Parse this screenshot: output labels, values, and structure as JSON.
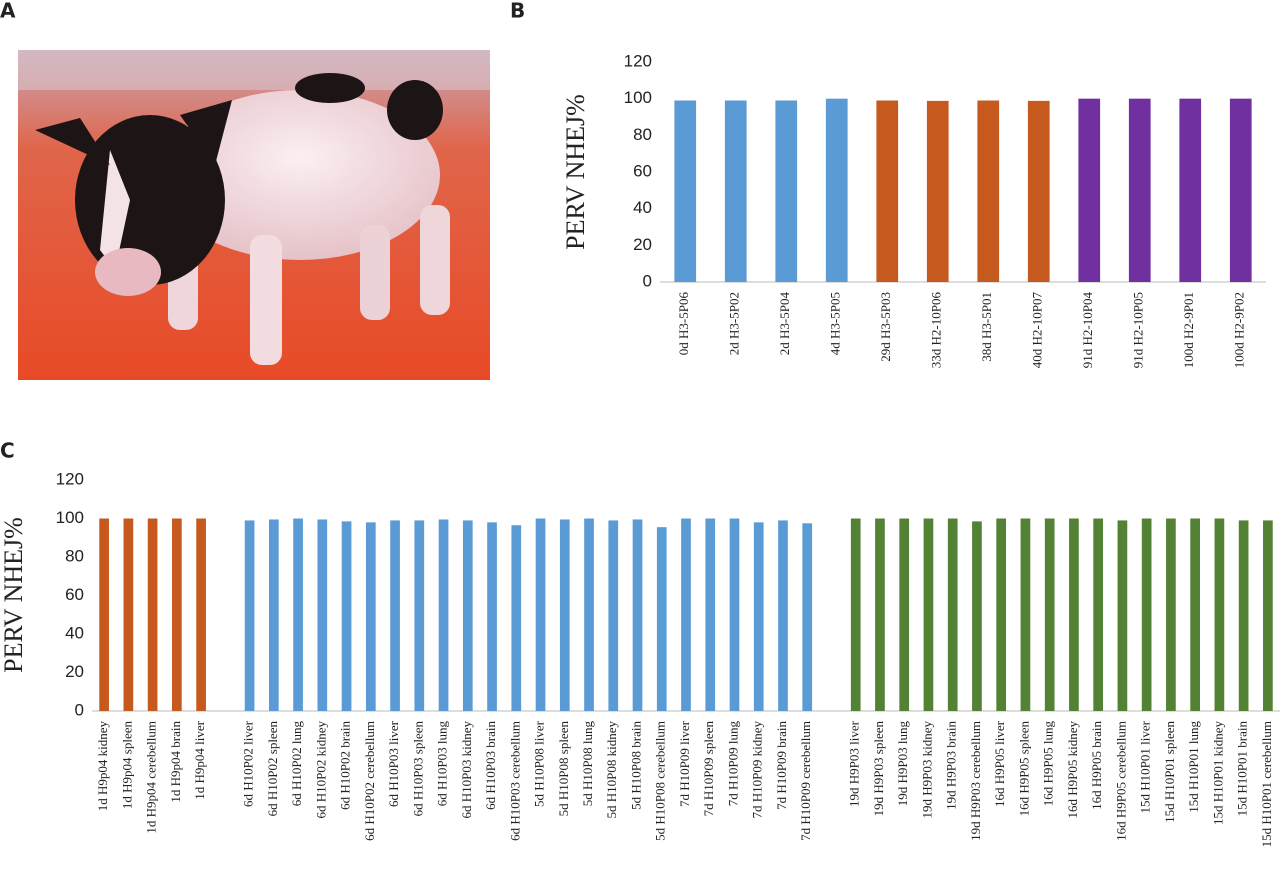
{
  "panel_a": "A",
  "chart_data": [
    {
      "type": "bar",
      "panel": "B",
      "y_label": "PERV NHEJ%",
      "categories": [
        "0d H3-5P06",
        "2d H3-5P02",
        "2d H3-5P04",
        "4d H3-5P05",
        "29d H3-5P03",
        "33d H2-10P06",
        "38d H3-5P01",
        "40d H2-10P07",
        "91d H2-10P04",
        "91d H2-10P05",
        "100d H2-9P01",
        "100d H2-9P02"
      ],
      "values": [
        99,
        99,
        99,
        100,
        99,
        98.8,
        99,
        98.8,
        100,
        100,
        100,
        100
      ],
      "colors": [
        "#5b9bd5",
        "#5b9bd5",
        "#5b9bd5",
        "#5b9bd5",
        "#c65a1e",
        "#c65a1e",
        "#c65a1e",
        "#c65a1e",
        "#7030a0",
        "#7030a0",
        "#7030a0",
        "#7030a0"
      ],
      "ylim": [
        0,
        120
      ],
      "yticks": [
        0,
        20,
        40,
        60,
        80,
        100,
        120
      ],
      "grid": false
    },
    {
      "type": "bar",
      "panel": "C",
      "y_label": "PERV NHEJ%",
      "categories": [
        "1d H9p04 kidney",
        "1d H9p04 spleen",
        "1d H9p04 cerebellum",
        "1d H9p04 brain",
        "1d H9p04 liver",
        null,
        "6d H10P02 liver",
        "6d H10P02 spleen",
        "6d H10P02 lung",
        "6d H10P02 kidney",
        "6d H10P02 brain",
        "6d H10P02 cerebellum",
        "6d H10P03 liver",
        "6d H10P03 spleen",
        "6d H10P03 lung",
        "6d H10P03 kidney",
        "6d H10P03 brain",
        "6d H10P03 cerebellum",
        "5d H10P08 liver",
        "5d H10P08 spleen",
        "5d H10P08 lung",
        "5d H10P08 kidney",
        "5d H10P08 brain",
        "5d H10P08 cerebellum",
        "7d H10P09 liver",
        "7d H10P09 spleen",
        "7d H10P09 lung",
        "7d H10P09 kidney",
        "7d H10P09 brain",
        "7d H10P09 cerebellum",
        null,
        "19d H9P03 liver",
        "19d H9P03 spleen",
        "19d H9P03 lung",
        "19d H9P03 kidney",
        "19d H9P03 brain",
        "19d H9P03 cerebellum",
        "16d H9P05 liver",
        "16d H9P05 spleen",
        "16d H9P05 lung",
        "16d H9P05 kidney",
        "16d H9P05 brain",
        "16d H9P05 cerebellum",
        "15d H10P01 liver",
        "15d H10P01 spleen",
        "15d H10P01 lung",
        "15d H10P01 kidney",
        "15d H10P01 brain",
        "15d H10P01 cerebellum"
      ],
      "values": [
        100,
        100,
        100,
        100,
        100,
        null,
        99,
        99.5,
        100,
        99.5,
        98.5,
        98,
        99,
        99,
        99.5,
        99,
        98,
        96.5,
        100,
        99.5,
        100,
        99,
        99.5,
        95.5,
        100,
        100,
        100,
        98,
        99,
        97.5,
        null,
        100,
        100,
        100,
        100,
        100,
        98.5,
        100,
        100,
        100,
        100,
        100,
        99,
        100,
        100,
        100,
        100,
        99,
        99
      ],
      "colors": [
        "#c65a1e",
        "#c65a1e",
        "#c65a1e",
        "#c65a1e",
        "#c65a1e",
        null,
        "#5b9bd5",
        "#5b9bd5",
        "#5b9bd5",
        "#5b9bd5",
        "#5b9bd5",
        "#5b9bd5",
        "#5b9bd5",
        "#5b9bd5",
        "#5b9bd5",
        "#5b9bd5",
        "#5b9bd5",
        "#5b9bd5",
        "#5b9bd5",
        "#5b9bd5",
        "#5b9bd5",
        "#5b9bd5",
        "#5b9bd5",
        "#5b9bd5",
        "#5b9bd5",
        "#5b9bd5",
        "#5b9bd5",
        "#5b9bd5",
        "#5b9bd5",
        "#5b9bd5",
        null,
        "#548235",
        "#548235",
        "#548235",
        "#548235",
        "#548235",
        "#548235",
        "#548235",
        "#548235",
        "#548235",
        "#548235",
        "#548235",
        "#548235",
        "#548235",
        "#548235",
        "#548235",
        "#548235",
        "#548235",
        "#548235"
      ],
      "ylim": [
        0,
        120
      ],
      "yticks": [
        0,
        20,
        40,
        60,
        80,
        100,
        120
      ],
      "grid": false
    }
  ]
}
